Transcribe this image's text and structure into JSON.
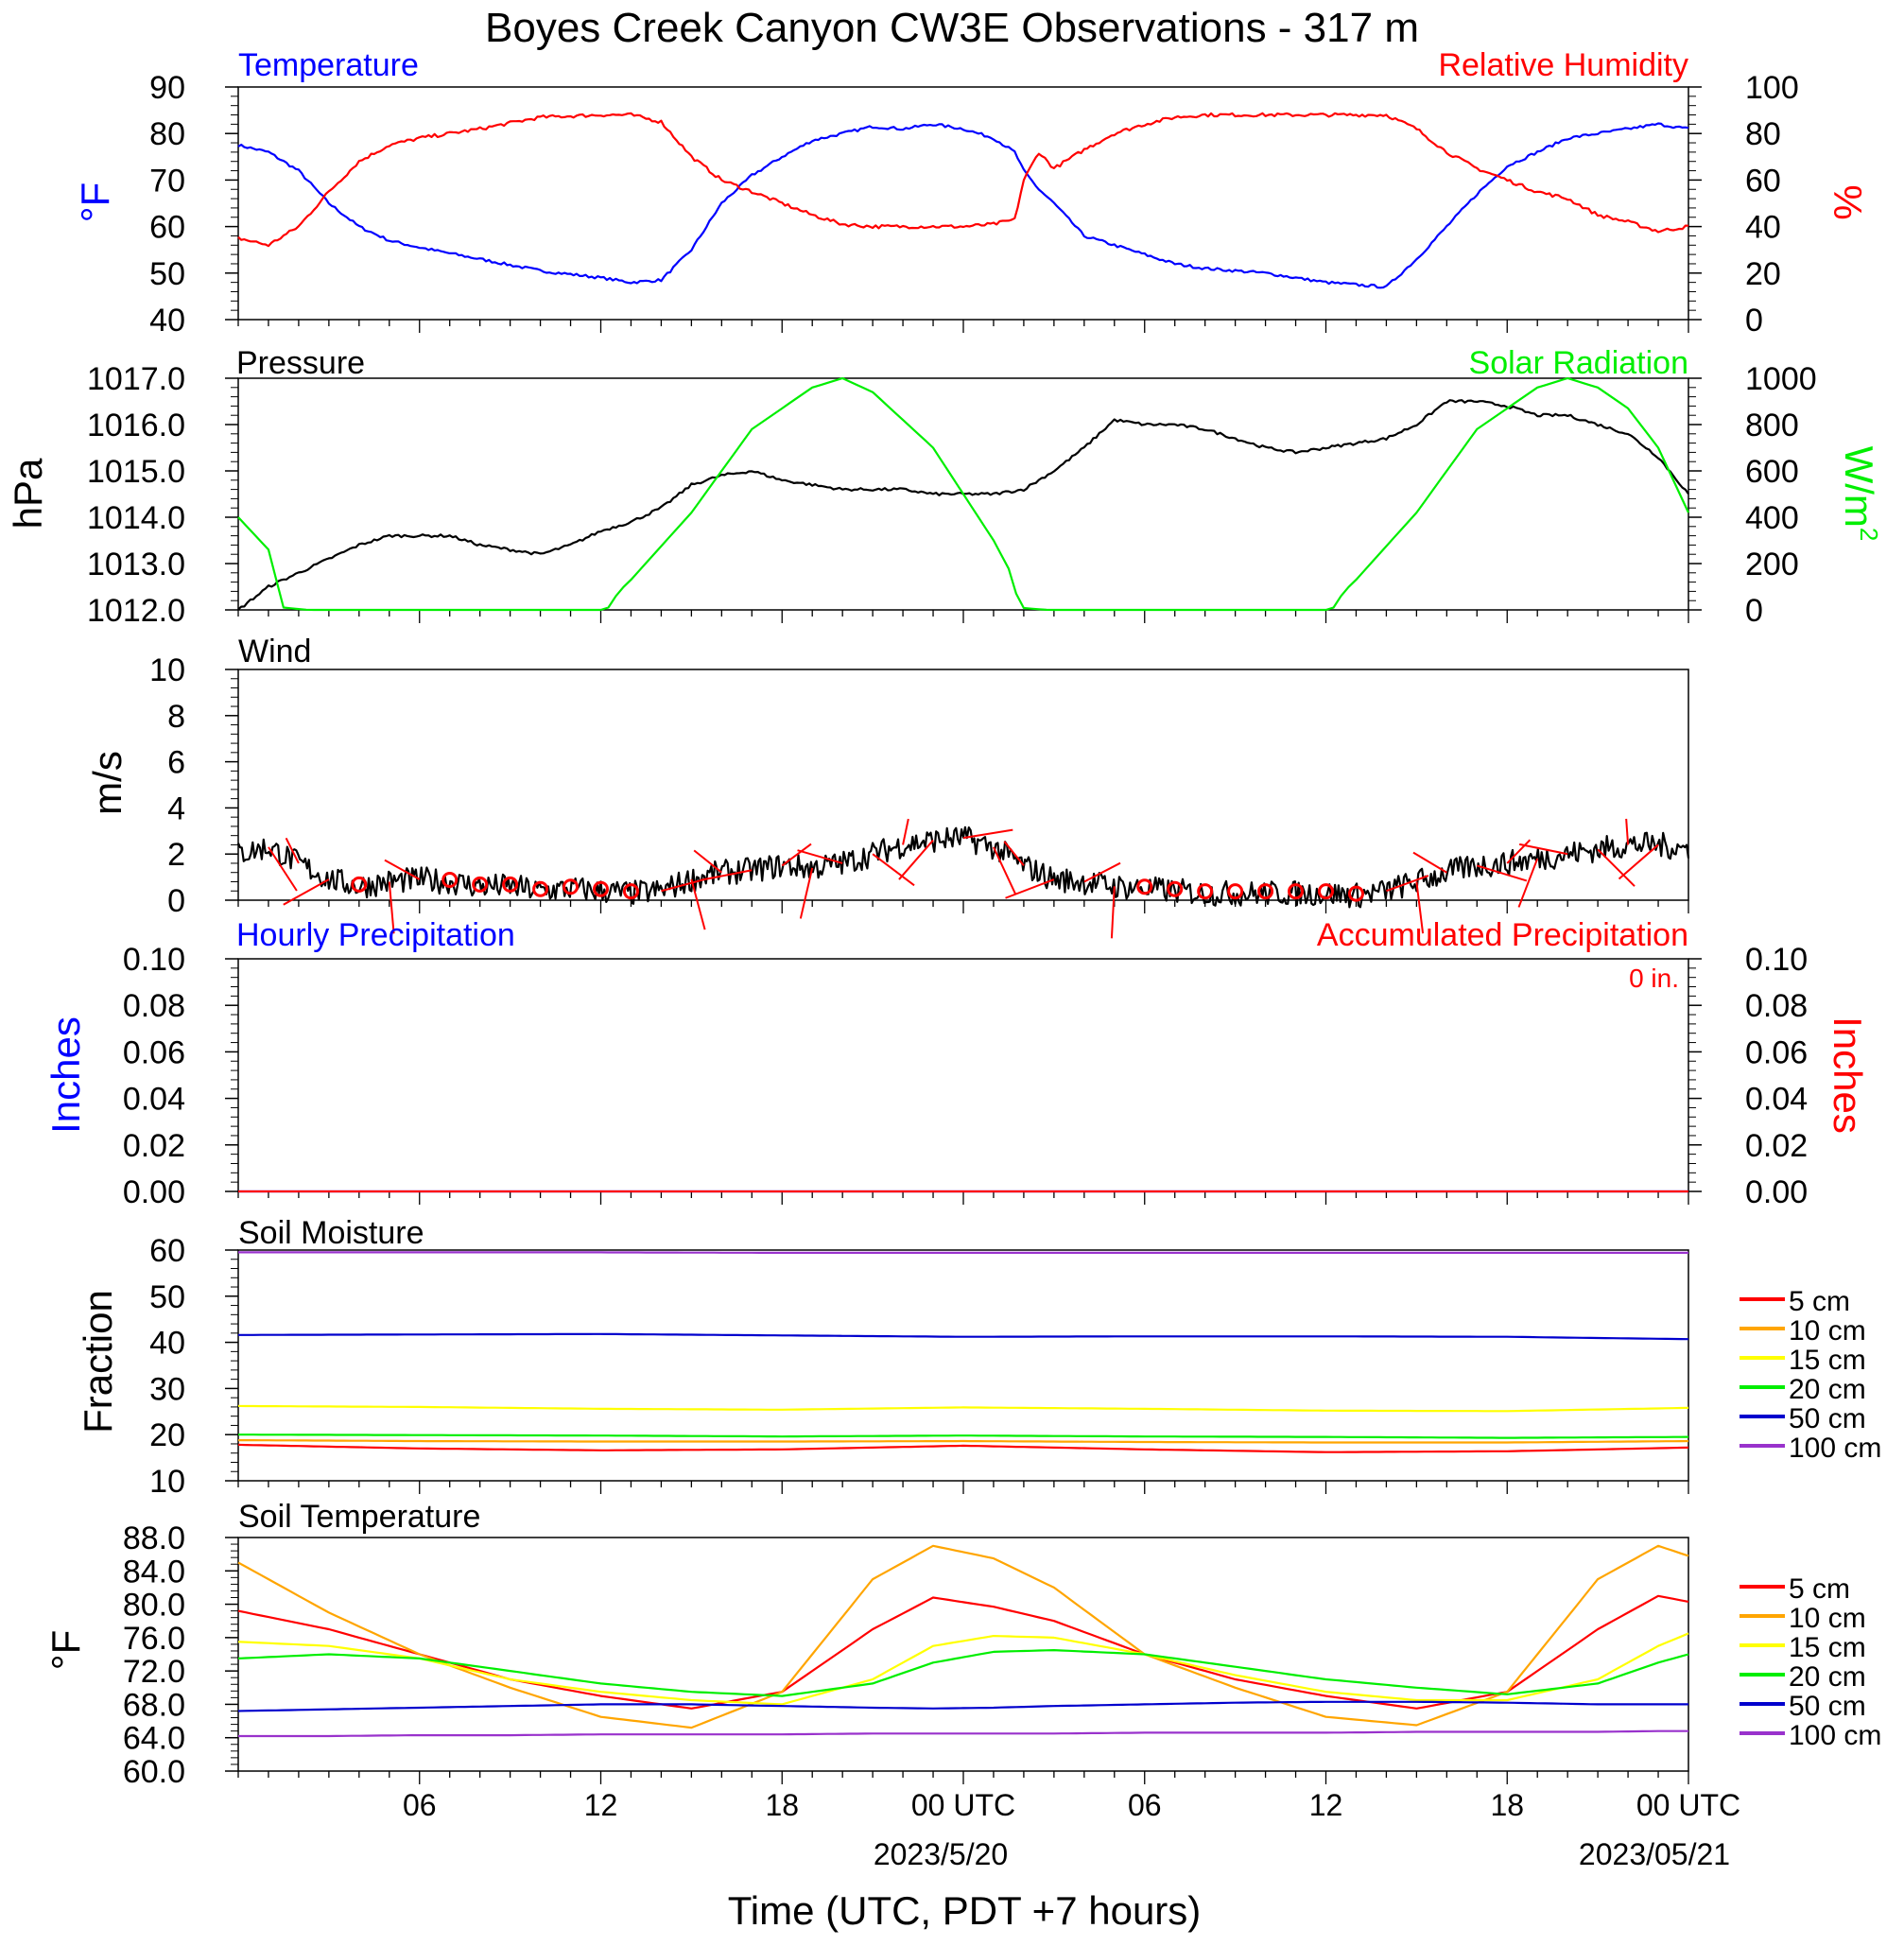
{
  "figure": {
    "title": "Boyes Creek Canyon CW3E Observations - 317 m",
    "xlabel": "Time (UTC, PDT +7 hours)",
    "x_tick_labels": [
      "06",
      "12",
      "18",
      "00 UTC",
      "06",
      "12",
      "18",
      "00 UTC"
    ],
    "date_labels": [
      "2023/5/20",
      "2023/05/21"
    ]
  },
  "chart_data": [
    {
      "id": "temp_rh",
      "type": "line",
      "title_left": "Temperature",
      "title_right": "Relative Humidity",
      "ylabel_left": "°F",
      "ylabel_right": "%",
      "ylim_left": [
        40,
        90
      ],
      "ylim_right": [
        0,
        100
      ],
      "yticks_left": [
        "40",
        "50",
        "60",
        "70",
        "80",
        "90"
      ],
      "yticks_right": [
        "0",
        "20",
        "40",
        "60",
        "80",
        "100"
      ],
      "x_hours": [
        0,
        1,
        2,
        3,
        4,
        5,
        6,
        8,
        10,
        12,
        13,
        14,
        15,
        16,
        17,
        18,
        19,
        20,
        21,
        22,
        23,
        24,
        25,
        25.7,
        26,
        26.5,
        27,
        28,
        29,
        30,
        31,
        32,
        34,
        36,
        37,
        38,
        39,
        40,
        41,
        42,
        43,
        44,
        45,
        46,
        47,
        48
      ],
      "series": [
        {
          "name": "Temperature",
          "color": "#0000ff",
          "axis": "left",
          "values": [
            77.5,
            76,
            72,
            65,
            60,
            57,
            55.5,
            53,
            50.5,
            49,
            48,
            48.5,
            55,
            65,
            71,
            75,
            78.5,
            80,
            81.5,
            81,
            82,
            81,
            79,
            76,
            72,
            68,
            65,
            58,
            56,
            54,
            52,
            51,
            50,
            48,
            47.5,
            47,
            53,
            60,
            67,
            73,
            76,
            79,
            80,
            81,
            82,
            81
          ]
        },
        {
          "name": "Relative Humidity",
          "color": "#ff0000",
          "axis": "right",
          "values": [
            35,
            32,
            40,
            55,
            68,
            75,
            78,
            82,
            87,
            88,
            88,
            85,
            70,
            60,
            55,
            50,
            45,
            41,
            40,
            40,
            40,
            40,
            41,
            43,
            60,
            72,
            65,
            73,
            80,
            84,
            87,
            88,
            88,
            88,
            88,
            88,
            82,
            72,
            65,
            60,
            55,
            52,
            45,
            42,
            38,
            40
          ]
        }
      ]
    },
    {
      "id": "pressure_solar",
      "type": "line",
      "title_left": "Pressure",
      "title_right": "Solar Radiation",
      "ylabel_left": "hPa",
      "ylabel_right": "W/m",
      "ylabel_right_sup": "2",
      "ylim_left": [
        1012,
        1017
      ],
      "ylim_right": [
        0,
        1000
      ],
      "yticks_left": [
        "1012.0",
        "1013.0",
        "1014.0",
        "1015.0",
        "1016.0",
        "1017.0"
      ],
      "yticks_right": [
        "0",
        "200",
        "400",
        "600",
        "800",
        "1000"
      ],
      "series": [
        {
          "name": "Pressure",
          "color": "#000000",
          "axis": "left",
          "x_hours": [
            0,
            1,
            2,
            3,
            4,
            5,
            6,
            7,
            8,
            9,
            10,
            11,
            12,
            13,
            14,
            15,
            16,
            17,
            18,
            19,
            20,
            21,
            22,
            23,
            24,
            25,
            26,
            27,
            28,
            29,
            30,
            31,
            32,
            33,
            34,
            35,
            36,
            37,
            38,
            39,
            40,
            41,
            42,
            43,
            44,
            45,
            46,
            47,
            48
          ],
          "values": [
            1012.0,
            1012.5,
            1012.8,
            1013.1,
            1013.4,
            1013.6,
            1013.6,
            1013.6,
            1013.4,
            1013.3,
            1013.2,
            1013.4,
            1013.7,
            1013.9,
            1014.2,
            1014.7,
            1014.9,
            1015.0,
            1014.8,
            1014.7,
            1014.6,
            1014.6,
            1014.6,
            1014.5,
            1014.5,
            1014.5,
            1014.6,
            1015.0,
            1015.5,
            1016.1,
            1016.0,
            1016.0,
            1015.9,
            1015.7,
            1015.5,
            1015.4,
            1015.5,
            1015.6,
            1015.7,
            1016.0,
            1016.5,
            1016.5,
            1016.4,
            1016.2,
            1016.2,
            1016.0,
            1015.8,
            1015.3,
            1014.5
          ]
        },
        {
          "name": "Solar Radiation",
          "color": "#00ee00",
          "axis": "right",
          "x_hours": [
            0,
            1,
            1.5,
            2.3,
            12.2,
            12.6,
            13,
            15,
            17,
            19,
            20,
            21,
            23,
            25,
            25.7,
            25.8,
            26.8,
            36.2,
            36.6,
            37,
            39,
            41,
            43,
            44,
            45,
            46,
            47,
            48
          ],
          "values": [
            400,
            260,
            10,
            0,
            0,
            80,
            130,
            420,
            780,
            960,
            1000,
            940,
            700,
            300,
            130,
            10,
            0,
            0,
            80,
            130,
            420,
            780,
            960,
            1000,
            960,
            870,
            700,
            420
          ]
        }
      ]
    },
    {
      "id": "wind",
      "type": "line",
      "title_left": "Wind",
      "ylabel_left": "m/s",
      "ylim_left": [
        0,
        10
      ],
      "yticks_left": [
        "0",
        "2",
        "4",
        "6",
        "8",
        "10"
      ],
      "series": [
        {
          "name": "Wind Speed",
          "color": "#000000",
          "axis": "left",
          "x_hours": [
            0,
            1,
            2,
            3,
            4,
            5,
            6,
            7,
            8,
            9,
            10,
            11,
            12,
            13,
            14,
            15,
            16,
            17,
            18,
            19,
            20,
            21,
            22,
            23,
            24,
            25,
            26,
            27,
            28,
            29,
            30,
            31,
            32,
            33,
            34,
            35,
            36,
            37,
            38,
            39,
            40,
            41,
            42,
            43,
            44,
            45,
            46,
            47,
            48
          ],
          "values": [
            2.0,
            2.3,
            1.6,
            0.9,
            0.6,
            0.8,
            0.9,
            0.8,
            0.6,
            0.6,
            0.4,
            0.5,
            0.4,
            0.3,
            0.4,
            0.9,
            1.2,
            1.3,
            1.5,
            1.4,
            1.6,
            2.0,
            2.4,
            2.6,
            2.7,
            2.3,
            1.5,
            0.9,
            0.8,
            0.6,
            0.5,
            0.4,
            0.3,
            0.3,
            0.3,
            0.3,
            0.3,
            0.2,
            0.4,
            0.8,
            1.2,
            1.5,
            1.6,
            1.8,
            2.0,
            2.2,
            2.4,
            2.4,
            2.2
          ]
        },
        {
          "name": "Wind Barbs",
          "color": "#ff0000",
          "axis": "left"
        }
      ],
      "calm_hours": [
        4,
        7,
        8,
        9,
        10,
        11,
        12,
        13,
        30,
        31,
        32,
        33,
        34,
        35,
        36,
        37
      ]
    },
    {
      "id": "precip",
      "type": "line",
      "title_left": "Hourly Precipitation",
      "title_right": "Accumulated Precipitation",
      "annotation": "0 in.",
      "ylabel_left": "Inches",
      "ylabel_right": "Inches",
      "ylim_left": [
        0,
        0.1
      ],
      "ylim_right": [
        0,
        0.1
      ],
      "yticks_left": [
        "0.00",
        "0.02",
        "0.04",
        "0.06",
        "0.08",
        "0.10"
      ],
      "yticks_right": [
        "0.00",
        "0.02",
        "0.04",
        "0.06",
        "0.08",
        "0.10"
      ],
      "series": [
        {
          "name": "Hourly Precipitation",
          "color": "#0000ff",
          "axis": "left",
          "x_hours": [
            0,
            48
          ],
          "values": [
            0,
            0
          ]
        },
        {
          "name": "Accumulated Precipitation",
          "color": "#ff0000",
          "axis": "right",
          "x_hours": [
            0,
            48
          ],
          "values": [
            0,
            0
          ]
        }
      ]
    },
    {
      "id": "soil_moisture",
      "type": "line",
      "title_left": "Soil Moisture",
      "ylabel_left": "Fraction",
      "ylim_left": [
        10,
        60
      ],
      "yticks_left": [
        "10",
        "20",
        "30",
        "40",
        "50",
        "60"
      ],
      "x_hours": [
        0,
        6,
        12,
        18,
        24,
        30,
        36,
        42,
        48
      ],
      "series": [
        {
          "name": "5 cm",
          "color": "#ff0000",
          "values": [
            17.8,
            17.0,
            16.6,
            16.8,
            17.6,
            16.8,
            16.2,
            16.4,
            17.2
          ]
        },
        {
          "name": "10 cm",
          "color": "#ffa500",
          "values": [
            18.8,
            18.6,
            18.5,
            18.5,
            18.6,
            18.4,
            18.3,
            18.3,
            18.6
          ]
        },
        {
          "name": "15 cm",
          "color": "#ffff00",
          "values": [
            26.2,
            26.0,
            25.6,
            25.4,
            25.9,
            25.6,
            25.2,
            25.1,
            25.8
          ]
        },
        {
          "name": "20 cm",
          "color": "#00ee00",
          "values": [
            20.0,
            19.9,
            19.8,
            19.6,
            19.8,
            19.6,
            19.5,
            19.3,
            19.5
          ]
        },
        {
          "name": "50 cm",
          "color": "#0000cd",
          "values": [
            41.6,
            41.7,
            41.8,
            41.5,
            41.2,
            41.3,
            41.3,
            41.2,
            40.7
          ]
        },
        {
          "name": "100 cm",
          "color": "#9932cc",
          "values": [
            59.5,
            59.5,
            59.5,
            59.4,
            59.4,
            59.4,
            59.4,
            59.4,
            59.4
          ]
        }
      ],
      "legend": "right"
    },
    {
      "id": "soil_temperature",
      "type": "line",
      "title_left": "Soil Temperature",
      "ylabel_left": "°F",
      "ylim_left": [
        60,
        88
      ],
      "yticks_left": [
        "60.0",
        "64.0",
        "68.0",
        "72.0",
        "76.0",
        "80.0",
        "84.0",
        "88.0"
      ],
      "x_hours": [
        0,
        3,
        6,
        9,
        12,
        15,
        18,
        21,
        23,
        25,
        27,
        30,
        33,
        36,
        39,
        42,
        45,
        47,
        48
      ],
      "series": [
        {
          "name": "5 cm",
          "color": "#ff0000",
          "values": [
            79.2,
            77,
            74,
            71,
            69,
            67.5,
            69.5,
            77,
            80.8,
            79.7,
            78,
            74,
            71,
            69,
            67.5,
            69.5,
            77,
            81,
            80.3
          ]
        },
        {
          "name": "10 cm",
          "color": "#ffa500",
          "values": [
            85,
            79,
            74,
            70,
            66.5,
            65.2,
            69.5,
            83,
            87,
            85.5,
            82,
            74,
            70,
            66.5,
            65.5,
            69.5,
            83,
            87,
            85.8
          ]
        },
        {
          "name": "15 cm",
          "color": "#ffff00",
          "values": [
            75.5,
            75,
            73.5,
            71,
            69.5,
            68.5,
            68,
            71,
            75,
            76.2,
            76,
            74,
            71.5,
            69.5,
            68.5,
            68.5,
            71,
            75,
            76.5
          ]
        },
        {
          "name": "20 cm",
          "color": "#00ee00",
          "values": [
            73.5,
            74,
            73.5,
            72,
            70.5,
            69.5,
            69,
            70.5,
            73,
            74.3,
            74.5,
            74,
            72.5,
            71,
            70,
            69.2,
            70.5,
            73,
            74
          ]
        },
        {
          "name": "50 cm",
          "color": "#0000cd",
          "values": [
            67.2,
            67.4,
            67.6,
            67.8,
            68,
            68,
            67.8,
            67.6,
            67.5,
            67.6,
            67.8,
            68,
            68.2,
            68.3,
            68.3,
            68.2,
            68,
            68,
            68
          ]
        },
        {
          "name": "100 cm",
          "color": "#9932cc",
          "values": [
            64.2,
            64.2,
            64.3,
            64.3,
            64.4,
            64.4,
            64.4,
            64.5,
            64.5,
            64.5,
            64.5,
            64.6,
            64.6,
            64.6,
            64.7,
            64.7,
            64.7,
            64.8,
            64.8
          ]
        }
      ],
      "legend": "right"
    }
  ]
}
